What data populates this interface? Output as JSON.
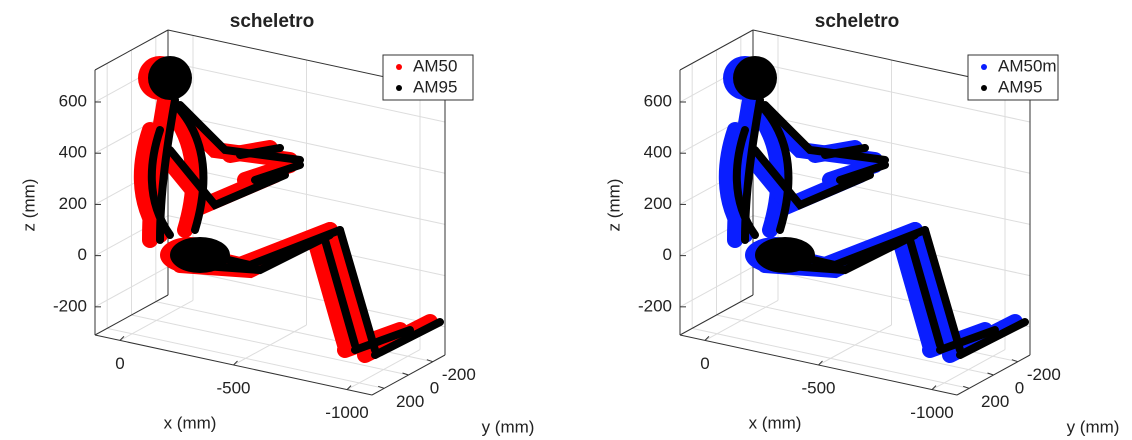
{
  "chart_data": [
    {
      "type": "scatter3d",
      "title": "scheletro",
      "xlabel": "x (mm)",
      "ylabel": "y (mm)",
      "zlabel": "z (mm)",
      "xlim": [
        110,
        -1110
      ],
      "ylim": [
        300,
        -300
      ],
      "zlim": [
        -310,
        725
      ],
      "xticks": [
        0,
        -500,
        -1000
      ],
      "yticks": [
        -200,
        0,
        200
      ],
      "zticks": [
        -200,
        0,
        200,
        400,
        600
      ],
      "grid": true,
      "legend": "upper right",
      "series": [
        {
          "name": "AM50",
          "color": "#ff0000"
        },
        {
          "name": "AM95",
          "color": "#000000"
        }
      ]
    },
    {
      "type": "scatter3d",
      "title": "scheletro",
      "xlabel": "x (mm)",
      "ylabel": "y (mm)",
      "zlabel": "z (mm)",
      "xlim": [
        110,
        -1110
      ],
      "ylim": [
        300,
        -300
      ],
      "zlim": [
        -310,
        725
      ],
      "xticks": [
        0,
        -500,
        -1000
      ],
      "yticks": [
        -200,
        0,
        200
      ],
      "zticks": [
        -200,
        0,
        200,
        400,
        600
      ],
      "grid": true,
      "legend": "upper right",
      "series": [
        {
          "name": "AM50m",
          "color": "#0a1eff"
        },
        {
          "name": "AM95",
          "color": "#000000"
        }
      ]
    }
  ]
}
